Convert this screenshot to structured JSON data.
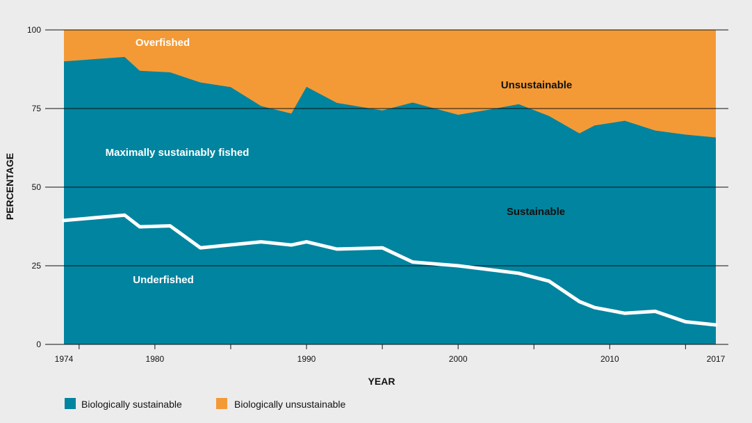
{
  "chart_data": {
    "type": "area",
    "title": "",
    "xlabel": "YEAR",
    "ylabel": "PERCENTAGE",
    "xlim": [
      1974,
      2017
    ],
    "ylim": [
      0,
      100
    ],
    "x_ticks": [
      1974,
      1980,
      1990,
      2000,
      2010,
      2017
    ],
    "y_ticks": [
      0,
      25,
      50,
      75,
      100
    ],
    "colors": {
      "sustainable": "#00849f",
      "unsustainable": "#f39a36",
      "underfished_line": "#ffffff",
      "grid": "#111111"
    },
    "series": [
      {
        "name": "Biologically sustainable",
        "x": [
          1974,
          1978,
          1979,
          1981,
          1983,
          1985,
          1987,
          1989,
          1990,
          1992,
          1995,
          1997,
          2000,
          2002,
          2004,
          2006,
          2008,
          2009,
          2011,
          2013,
          2015,
          2017
        ],
        "values": [
          90.0,
          91.4,
          87.0,
          86.5,
          83.3,
          81.8,
          75.8,
          73.4,
          81.9,
          76.8,
          74.4,
          76.9,
          73.0,
          74.6,
          76.4,
          72.6,
          67.1,
          69.6,
          71.1,
          68.0,
          66.7,
          65.8
        ]
      },
      {
        "name": "Underfished",
        "x": [
          1974,
          1978,
          1979,
          1981,
          1983,
          1987,
          1989,
          1990,
          1992,
          1995,
          1997,
          2000,
          2004,
          2006,
          2008,
          2009,
          2011,
          2013,
          2015,
          2017
        ],
        "values": [
          39.4,
          41.1,
          37.4,
          37.7,
          30.7,
          32.6,
          31.6,
          32.6,
          30.3,
          30.7,
          26.2,
          25.0,
          22.6,
          20.1,
          13.6,
          11.7,
          9.9,
          10.5,
          7.2,
          6.2
        ]
      }
    ],
    "annotations": {
      "overfished": "Overfished",
      "unsustainable": "Unsustainable",
      "maximally": "Maximally sustainably fished",
      "sustainable": "Sustainable",
      "underfished": "Underfished"
    },
    "legend": [
      {
        "label": "Biologically sustainable",
        "color": "#00849f"
      },
      {
        "label": "Biologically unsustainable",
        "color": "#f39a36"
      }
    ],
    "legend_position": "bottom-left"
  }
}
